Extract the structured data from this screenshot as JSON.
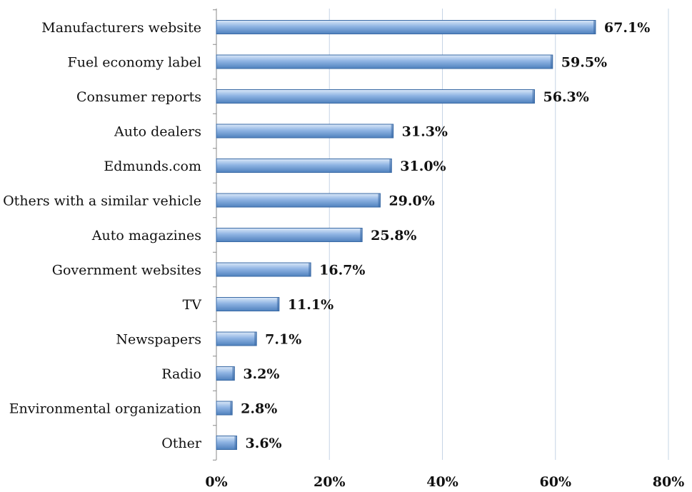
{
  "chart_data": {
    "type": "bar",
    "orientation": "horizontal",
    "categories": [
      "Manufacturers website",
      "Fuel economy label",
      "Consumer reports",
      "Auto dealers",
      "Edmunds.com",
      "Others with a similar vehicle",
      "Auto magazines",
      "Government websites",
      "TV",
      "Newspapers",
      "Radio",
      "Environmental organization",
      "Other"
    ],
    "values": [
      67.1,
      59.5,
      56.3,
      31.3,
      31.0,
      29.0,
      25.8,
      16.7,
      11.1,
      7.1,
      3.2,
      2.8,
      3.6
    ],
    "value_labels": [
      "67.1%",
      "59.5%",
      "56.3%",
      "31.3%",
      "31.0%",
      "29.0%",
      "25.8%",
      "16.7%",
      "11.1%",
      "7.1%",
      "3.2%",
      "2.8%",
      "3.6%"
    ],
    "xlim": [
      0,
      80
    ],
    "xticks": [
      0,
      20,
      40,
      60,
      80
    ],
    "xtick_labels": [
      "0%",
      "20%",
      "40%",
      "60%",
      "80%"
    ],
    "title": "",
    "xlabel": "",
    "ylabel": "",
    "grid": "vertical",
    "legend": "none",
    "colors": {
      "bar_top": "#dbe8f8",
      "bar_mid": "#8fb4e3",
      "bar_bottom": "#4f81bd",
      "bar_stroke": "#3a6aa5",
      "grid": "#c6d4e6",
      "axis": "#888888"
    }
  }
}
